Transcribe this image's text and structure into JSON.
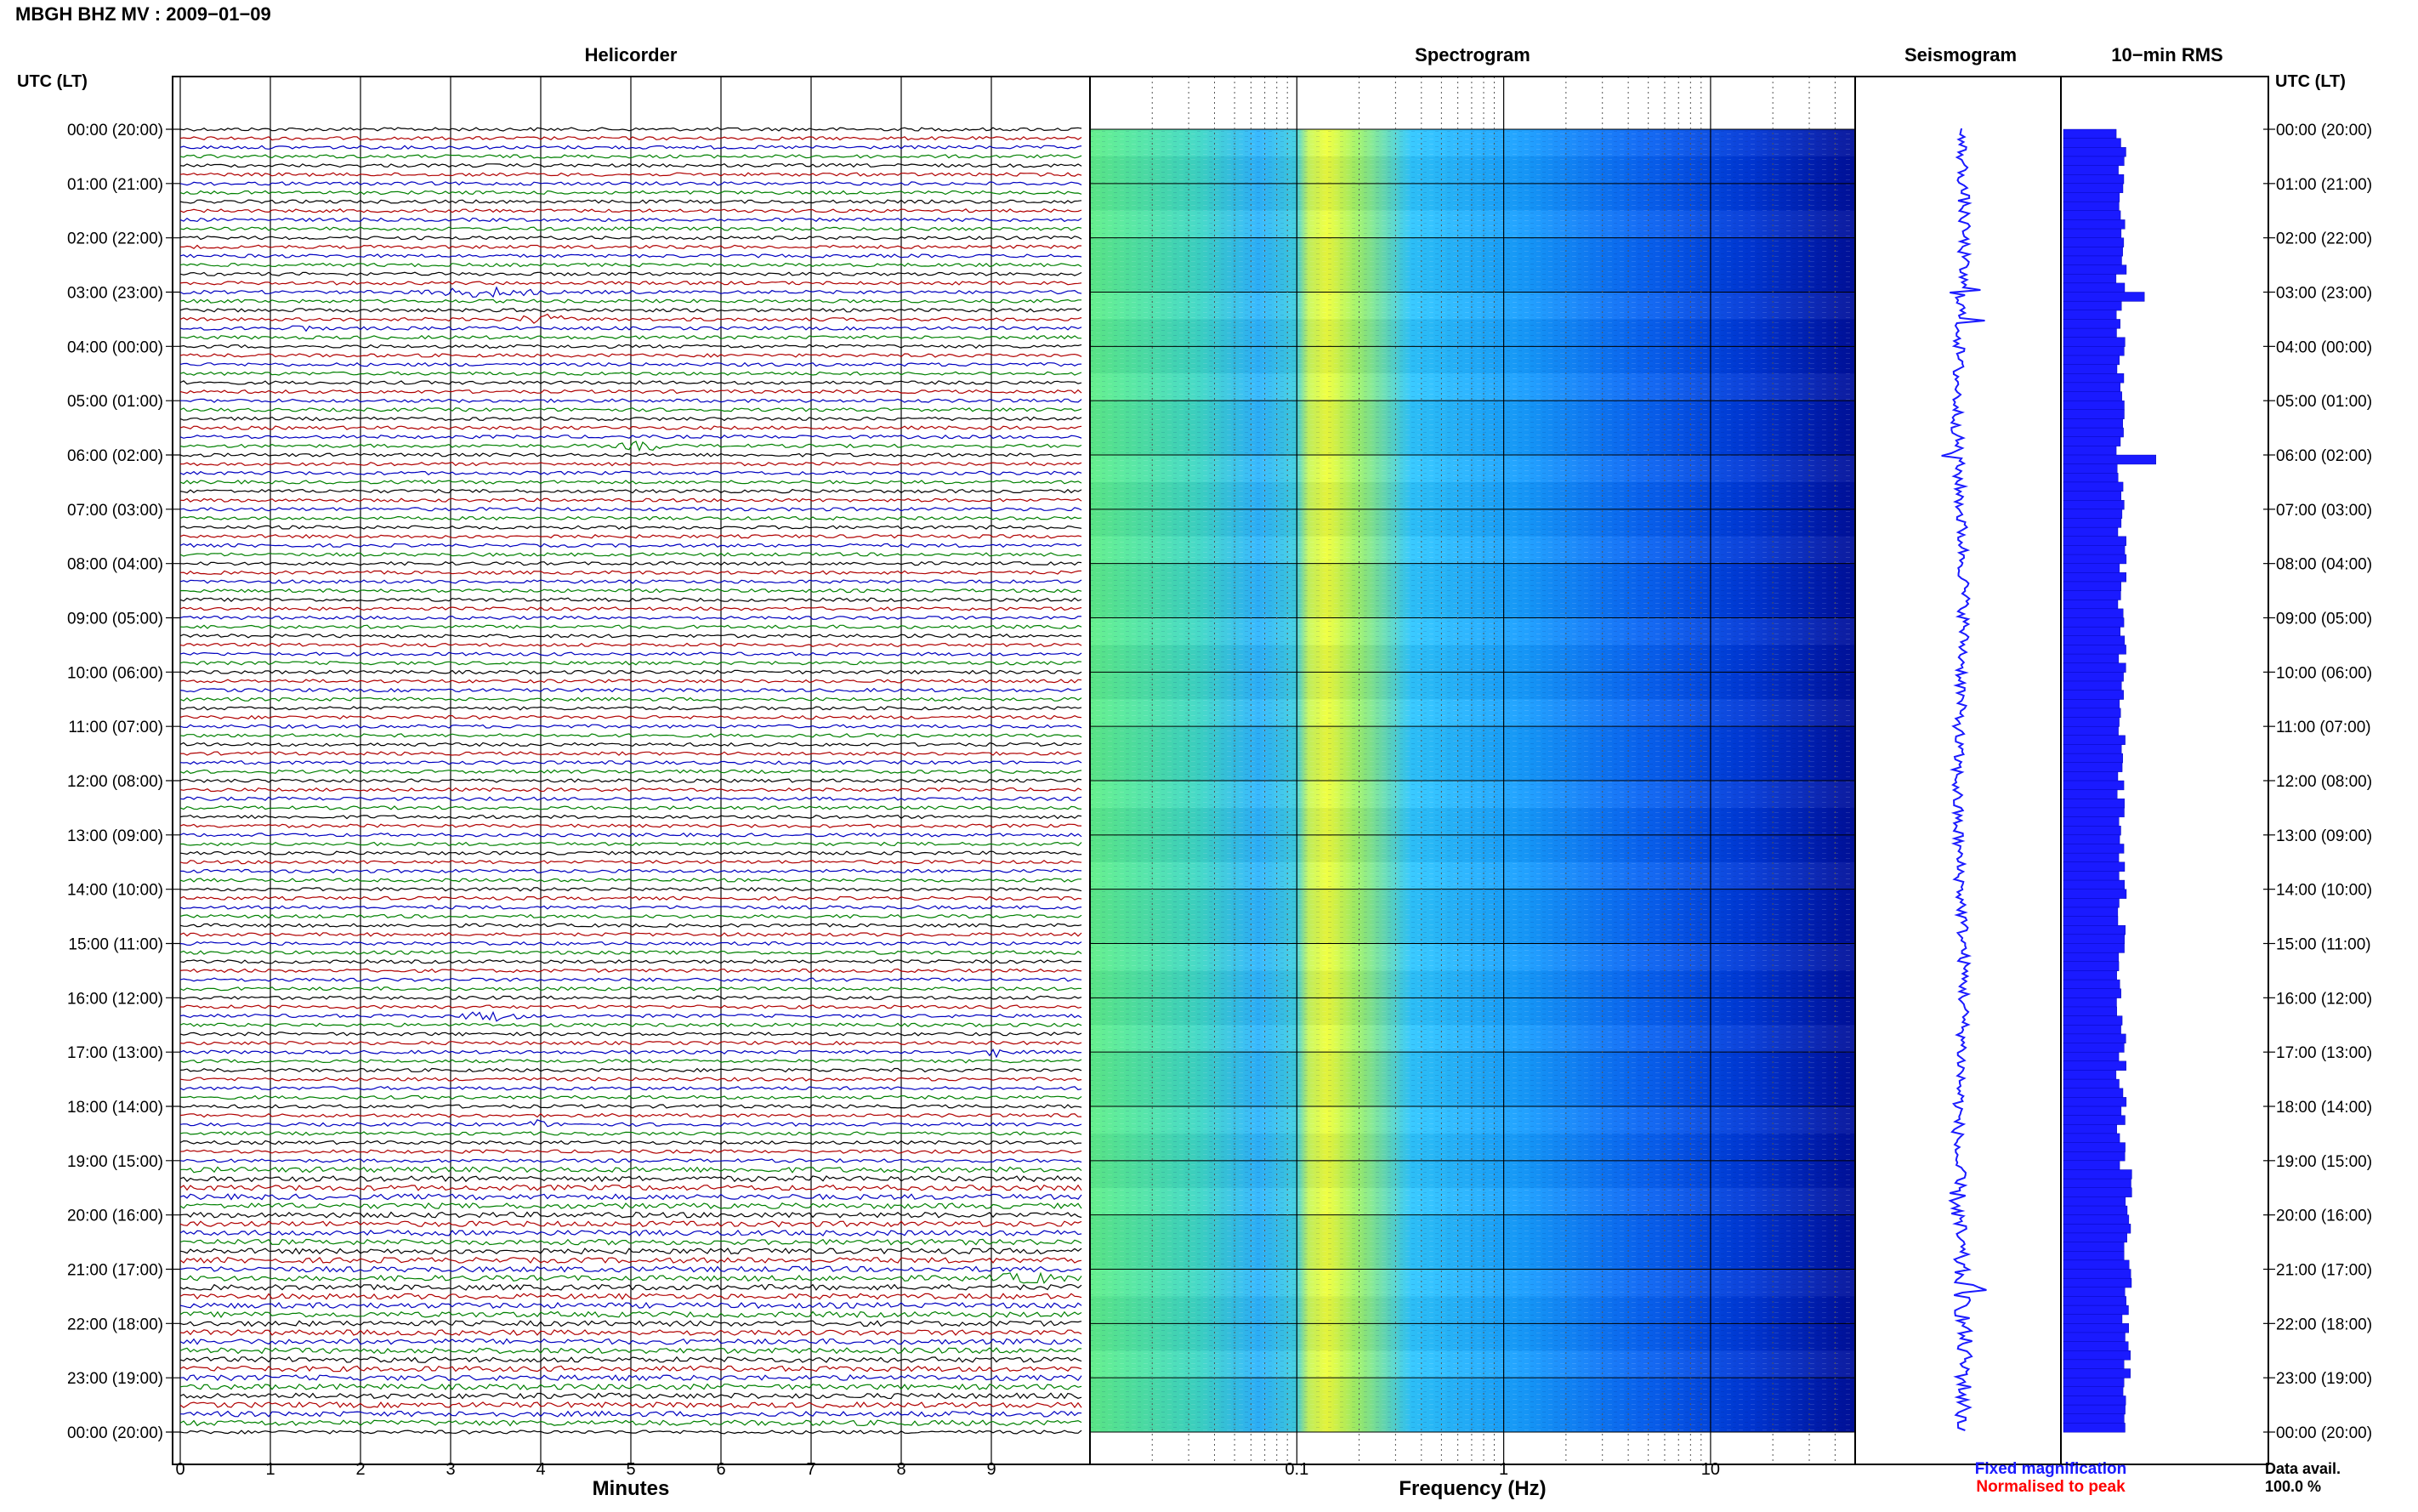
{
  "header": {
    "title": "MBGH BHZ MV : 2009−01−09"
  },
  "panels": {
    "helicorder": "Helicorder",
    "spectrogram": "Spectrogram",
    "seismogram": "Seismogram",
    "rms": "10−min RMS"
  },
  "axis_labels": {
    "time_left": "UTC (LT)",
    "time_right": "UTC (LT)",
    "minutes": "Minutes",
    "frequency": "Frequency (Hz)"
  },
  "legend": {
    "fixed": "Fixed magnification",
    "fixed_color": "#1a1aff",
    "normalised": "Normalised to peak",
    "normalised_color": "#ff0000"
  },
  "data_avail": {
    "label": "Data avail.",
    "value": "100.0 %"
  },
  "colors": {
    "trace_cycle": [
      "#000000",
      "#b00000",
      "#0000c0",
      "#008000"
    ],
    "spectrogram_scale": [
      "#5ff089",
      "#2fd0ff",
      "#f0ff3a",
      "#18a0ff",
      "#0050f0",
      "#0010a0"
    ],
    "seismogram": "#1a1aff",
    "rms_bar": "#1a1aff"
  },
  "chart_data": [
    {
      "type": "line",
      "title": "Helicorder",
      "xlabel": "Minutes",
      "x_ticks": [
        0,
        1,
        2,
        3,
        4,
        5,
        6,
        7,
        8,
        9
      ],
      "xlim": [
        0,
        10
      ],
      "time_labels": [
        "00:00 (20:00)",
        "01:00 (21:00)",
        "02:00 (22:00)",
        "03:00 (23:00)",
        "04:00 (00:00)",
        "05:00 (01:00)",
        "06:00 (02:00)",
        "07:00 (03:00)",
        "08:00 (04:00)",
        "09:00 (05:00)",
        "10:00 (06:00)",
        "11:00 (07:00)",
        "12:00 (08:00)",
        "13:00 (09:00)",
        "14:00 (10:00)",
        "15:00 (11:00)",
        "16:00 (12:00)",
        "17:00 (13:00)",
        "18:00 (14:00)",
        "19:00 (15:00)",
        "20:00 (16:00)",
        "21:00 (17:00)",
        "22:00 (18:00)",
        "23:00 (19:00)",
        "00:00 (20:00)"
      ],
      "lines_per_hour": 6,
      "events": [
        {
          "hour": 3.0,
          "minute_start": 2.5,
          "minute_end": 4.2
        },
        {
          "hour": 3.5,
          "minute_start": 3.6,
          "minute_end": 4.4
        },
        {
          "hour": 3.67,
          "minute_start": 1.2,
          "minute_end": 1.5
        },
        {
          "hour": 5.83,
          "minute_start": 4.8,
          "minute_end": 5.5
        },
        {
          "hour": 16.33,
          "minute_start": 3.0,
          "minute_end": 3.9
        },
        {
          "hour": 17.0,
          "minute_start": 8.9,
          "minute_end": 9.2
        },
        {
          "hour": 18.33,
          "minute_start": 3.8,
          "minute_end": 4.1
        },
        {
          "hour": 21.17,
          "minute_start": 8.9,
          "minute_end": 9.9
        }
      ]
    },
    {
      "type": "heatmap",
      "title": "Spectrogram",
      "xlabel": "Frequency (Hz)",
      "x_scale": "log",
      "x_tick_labels": [
        "0.1",
        "1",
        "10"
      ],
      "xlim": [
        0.01,
        50
      ],
      "ylim_hours": [
        0,
        24
      ]
    },
    {
      "type": "line",
      "title": "Seismogram",
      "ylim_hours": [
        0,
        24
      ],
      "spikes_hours": [
        3.0,
        3.5,
        6.0,
        21.33
      ]
    },
    {
      "type": "bar",
      "title": "10−min RMS",
      "orientation": "horizontal",
      "bins": 144,
      "peaks": [
        {
          "hour": 3.0,
          "value": 1.4
        },
        {
          "hour": 6.0,
          "value": 1.6
        }
      ]
    }
  ]
}
